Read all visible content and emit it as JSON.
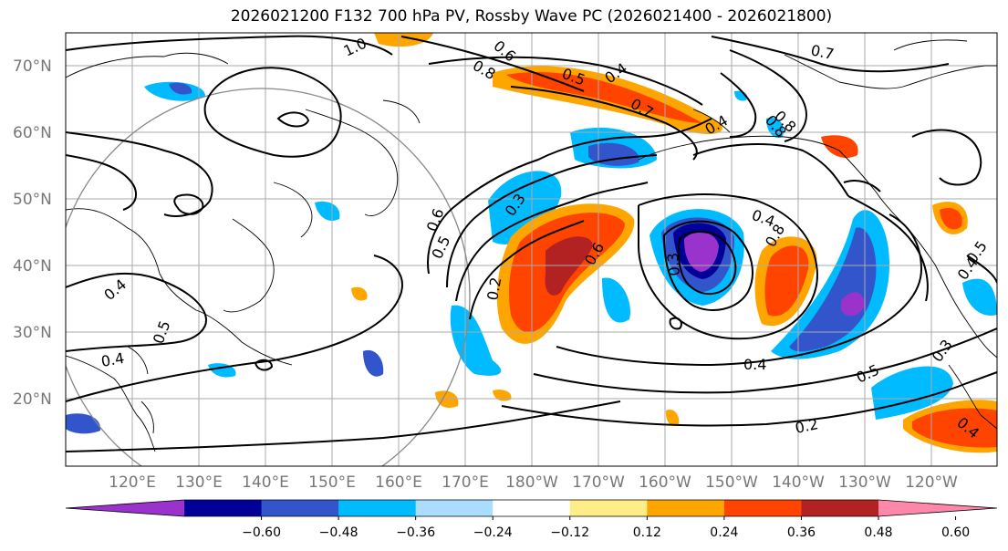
{
  "title": "2026021200 F132 700 hPa PV, Rossby Wave PC (2026021400 - 2026021800)",
  "lat_labels": [
    "70°N",
    "60°N",
    "50°N",
    "40°N",
    "30°N",
    "20°N"
  ],
  "lon_labels": [
    "120°E",
    "130°E",
    "140°E",
    "150°E",
    "160°E",
    "170°E",
    "180°W",
    "170°W",
    "160°W",
    "150°W",
    "140°W",
    "130°W",
    "120°W"
  ],
  "colorbar": {
    "colors": [
      "#9933cc",
      "#000099",
      "#3355cc",
      "#00bbff",
      "#aaddff",
      "#ffffff",
      "#ffee88",
      "#ffa500",
      "#ff4400",
      "#b22222",
      "#ff88aa"
    ],
    "tick_labels": [
      "−0.60",
      "−0.48",
      "−0.36",
      "−0.24",
      "−0.12",
      "0.12",
      "0.24",
      "0.36",
      "0.48",
      "0.60"
    ]
  },
  "contour_labels": [
    "1.0",
    "0.6",
    "0.8",
    "0.5",
    "0.4",
    "0.7",
    "0.7",
    "0.8",
    "0.6",
    "0.3",
    "0.4",
    "0.5",
    "0.2",
    "0.6",
    "0.3",
    "0.4",
    "0.8",
    "0.4",
    "0.5",
    "0.4",
    "0.5",
    "0.4",
    "0.3",
    "0.2",
    "0.4",
    "0.5",
    "0.4",
    "0.8"
  ]
}
